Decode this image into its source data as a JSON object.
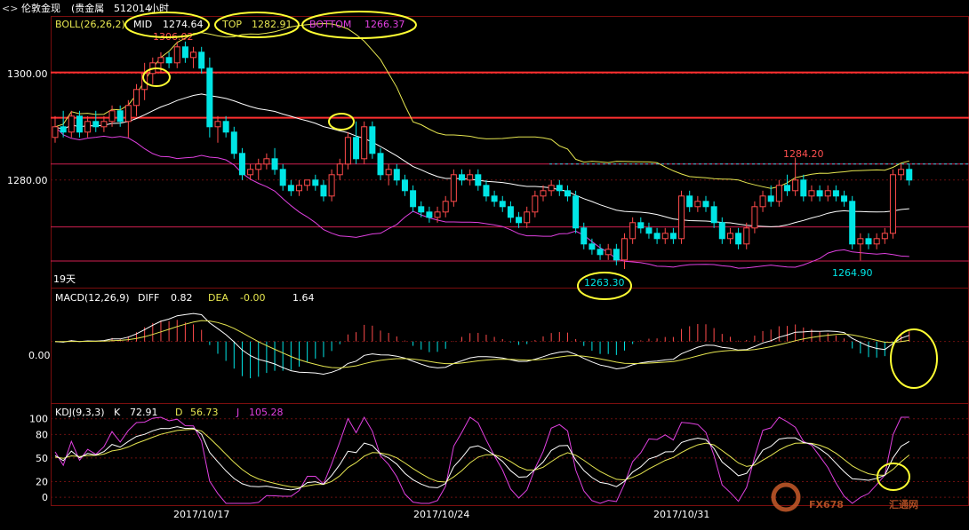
{
  "window": {
    "title": "伦敦金现",
    "subtitle": "(贵金属",
    "code": "512014",
    "period": "小时"
  },
  "boll": {
    "label": "BOLL(26,26,2)",
    "mid_label": "MID",
    "mid_value": "1274.64",
    "top_label": "TOP",
    "top_value": "1282.91",
    "bottom_label": "BOTTOM",
    "bottom_value": "1266.37"
  },
  "macd": {
    "label": "MACD(12,26,9)",
    "diff_label": "DIFF",
    "diff_value": "0.82",
    "dea_label": "DEA",
    "dea_value": "-0.00",
    "macd_value": "1.64"
  },
  "kdj": {
    "label": "KDJ(9,3,3)",
    "k_label": "K",
    "k_value": "72.91",
    "d_label": "D",
    "d_value": "56.73",
    "j_label": "J",
    "j_value": "105.28"
  },
  "annotations": {
    "high_1": "1306.02",
    "high_2": "1284.20",
    "low_1": "1263.30",
    "low_2": "1264.90",
    "days": "19天"
  },
  "watermark": {
    "brand": "FX678",
    "cn": "汇通网"
  },
  "colors": {
    "up": "#ff4b4b",
    "down": "#00e5e5",
    "mid": "#ffffff",
    "top": "#e6e650",
    "bottom": "#e040e0",
    "circle": "#ffff33"
  },
  "chart_data": [
    {
      "type": "candlestick",
      "title": "",
      "y_ticks": [
        "1300.00",
        "1280.00"
      ],
      "x_ticks": [
        "2017/10/17",
        "2017/10/24",
        "2017/10/31"
      ],
      "ylim": [
        1259.8,
        1310.8
      ],
      "horizontal_levels": [
        1300.2,
        1291.7,
        1283.0,
        1271.2,
        1264.8
      ],
      "candles": [
        {
          "o": 1288,
          "h": 1292,
          "l": 1287,
          "c": 1290
        },
        {
          "o": 1290,
          "h": 1293,
          "l": 1288,
          "c": 1289
        },
        {
          "o": 1289,
          "h": 1293,
          "l": 1288,
          "c": 1292
        },
        {
          "o": 1292,
          "h": 1293,
          "l": 1288,
          "c": 1289
        },
        {
          "o": 1289,
          "h": 1292,
          "l": 1288,
          "c": 1291
        },
        {
          "o": 1291,
          "h": 1293,
          "l": 1289,
          "c": 1290
        },
        {
          "o": 1290,
          "h": 1292,
          "l": 1289,
          "c": 1291
        },
        {
          "o": 1291,
          "h": 1294,
          "l": 1290,
          "c": 1293
        },
        {
          "o": 1293,
          "h": 1294,
          "l": 1290,
          "c": 1291
        },
        {
          "o": 1291,
          "h": 1295,
          "l": 1288,
          "c": 1294
        },
        {
          "o": 1294,
          "h": 1298,
          "l": 1292,
          "c": 1297
        },
        {
          "o": 1297,
          "h": 1302,
          "l": 1295,
          "c": 1300
        },
        {
          "o": 1300,
          "h": 1303,
          "l": 1298,
          "c": 1302
        },
        {
          "o": 1302,
          "h": 1304,
          "l": 1300,
          "c": 1303
        },
        {
          "o": 1303,
          "h": 1304,
          "l": 1301,
          "c": 1302
        },
        {
          "o": 1302,
          "h": 1306,
          "l": 1301,
          "c": 1305
        },
        {
          "o": 1305,
          "h": 1306,
          "l": 1302,
          "c": 1303
        },
        {
          "o": 1303,
          "h": 1305,
          "l": 1301,
          "c": 1304
        },
        {
          "o": 1304,
          "h": 1305,
          "l": 1300,
          "c": 1301
        },
        {
          "o": 1301,
          "h": 1303,
          "l": 1288,
          "c": 1290
        },
        {
          "o": 1290,
          "h": 1292,
          "l": 1287,
          "c": 1291
        },
        {
          "o": 1291,
          "h": 1292,
          "l": 1288,
          "c": 1289
        },
        {
          "o": 1289,
          "h": 1290,
          "l": 1284,
          "c": 1285
        },
        {
          "o": 1285,
          "h": 1286,
          "l": 1280,
          "c": 1281
        },
        {
          "o": 1281,
          "h": 1283,
          "l": 1280,
          "c": 1282
        },
        {
          "o": 1282,
          "h": 1284,
          "l": 1280,
          "c": 1283
        },
        {
          "o": 1283,
          "h": 1285,
          "l": 1282,
          "c": 1284
        },
        {
          "o": 1284,
          "h": 1286,
          "l": 1281,
          "c": 1282
        },
        {
          "o": 1282,
          "h": 1283,
          "l": 1278,
          "c": 1279
        },
        {
          "o": 1279,
          "h": 1280,
          "l": 1277,
          "c": 1278
        },
        {
          "o": 1278,
          "h": 1280,
          "l": 1277,
          "c": 1279
        },
        {
          "o": 1279,
          "h": 1280,
          "l": 1278,
          "c": 1280
        },
        {
          "o": 1280,
          "h": 1281,
          "l": 1278,
          "c": 1279
        },
        {
          "o": 1279,
          "h": 1280,
          "l": 1276,
          "c": 1277
        },
        {
          "o": 1277,
          "h": 1282,
          "l": 1276,
          "c": 1281
        },
        {
          "o": 1281,
          "h": 1284,
          "l": 1280,
          "c": 1283
        },
        {
          "o": 1283,
          "h": 1289,
          "l": 1282,
          "c": 1288
        },
        {
          "o": 1288,
          "h": 1291,
          "l": 1283,
          "c": 1284
        },
        {
          "o": 1284,
          "h": 1291,
          "l": 1283,
          "c": 1290
        },
        {
          "o": 1290,
          "h": 1291,
          "l": 1284,
          "c": 1285
        },
        {
          "o": 1285,
          "h": 1286,
          "l": 1280,
          "c": 1281
        },
        {
          "o": 1281,
          "h": 1283,
          "l": 1279,
          "c": 1282
        },
        {
          "o": 1282,
          "h": 1283,
          "l": 1279,
          "c": 1280
        },
        {
          "o": 1280,
          "h": 1281,
          "l": 1277,
          "c": 1278
        },
        {
          "o": 1278,
          "h": 1279,
          "l": 1274,
          "c": 1275
        },
        {
          "o": 1275,
          "h": 1276,
          "l": 1273,
          "c": 1274
        },
        {
          "o": 1274,
          "h": 1275,
          "l": 1272,
          "c": 1273
        },
        {
          "o": 1273,
          "h": 1275,
          "l": 1272,
          "c": 1274
        },
        {
          "o": 1274,
          "h": 1277,
          "l": 1273,
          "c": 1276
        },
        {
          "o": 1276,
          "h": 1282,
          "l": 1275,
          "c": 1281
        },
        {
          "o": 1281,
          "h": 1282,
          "l": 1279,
          "c": 1280
        },
        {
          "o": 1280,
          "h": 1282,
          "l": 1279,
          "c": 1281
        },
        {
          "o": 1281,
          "h": 1282,
          "l": 1278,
          "c": 1279
        },
        {
          "o": 1279,
          "h": 1280,
          "l": 1276,
          "c": 1277
        },
        {
          "o": 1277,
          "h": 1278,
          "l": 1275,
          "c": 1276
        },
        {
          "o": 1276,
          "h": 1277,
          "l": 1274,
          "c": 1275
        },
        {
          "o": 1275,
          "h": 1276,
          "l": 1272,
          "c": 1273
        },
        {
          "o": 1273,
          "h": 1274,
          "l": 1271,
          "c": 1272
        },
        {
          "o": 1272,
          "h": 1275,
          "l": 1271,
          "c": 1274
        },
        {
          "o": 1274,
          "h": 1278,
          "l": 1273,
          "c": 1277
        },
        {
          "o": 1277,
          "h": 1279,
          "l": 1276,
          "c": 1278
        },
        {
          "o": 1278,
          "h": 1280,
          "l": 1277,
          "c": 1279
        },
        {
          "o": 1279,
          "h": 1280,
          "l": 1277,
          "c": 1278
        },
        {
          "o": 1278,
          "h": 1279,
          "l": 1276,
          "c": 1277
        },
        {
          "o": 1277,
          "h": 1278,
          "l": 1270,
          "c": 1271
        },
        {
          "o": 1271,
          "h": 1272,
          "l": 1267,
          "c": 1268
        },
        {
          "o": 1268,
          "h": 1269,
          "l": 1266,
          "c": 1267
        },
        {
          "o": 1267,
          "h": 1268,
          "l": 1265,
          "c": 1266
        },
        {
          "o": 1266,
          "h": 1268,
          "l": 1265,
          "c": 1267
        },
        {
          "o": 1267,
          "h": 1268,
          "l": 1264,
          "c": 1265
        },
        {
          "o": 1265,
          "h": 1270,
          "l": 1263.3,
          "c": 1269
        },
        {
          "o": 1269,
          "h": 1273,
          "l": 1268,
          "c": 1272
        },
        {
          "o": 1272,
          "h": 1273,
          "l": 1270,
          "c": 1271
        },
        {
          "o": 1271,
          "h": 1272,
          "l": 1269,
          "c": 1270
        },
        {
          "o": 1270,
          "h": 1271,
          "l": 1268,
          "c": 1269
        },
        {
          "o": 1269,
          "h": 1271,
          "l": 1268,
          "c": 1270
        },
        {
          "o": 1270,
          "h": 1271,
          "l": 1268,
          "c": 1269
        },
        {
          "o": 1269,
          "h": 1278,
          "l": 1268,
          "c": 1277
        },
        {
          "o": 1277,
          "h": 1278,
          "l": 1274,
          "c": 1275
        },
        {
          "o": 1275,
          "h": 1277,
          "l": 1274,
          "c": 1276
        },
        {
          "o": 1276,
          "h": 1277,
          "l": 1274,
          "c": 1275
        },
        {
          "o": 1275,
          "h": 1276,
          "l": 1271,
          "c": 1272
        },
        {
          "o": 1272,
          "h": 1273,
          "l": 1268,
          "c": 1269
        },
        {
          "o": 1269,
          "h": 1271,
          "l": 1268,
          "c": 1270
        },
        {
          "o": 1270,
          "h": 1271,
          "l": 1267,
          "c": 1268
        },
        {
          "o": 1268,
          "h": 1272,
          "l": 1267,
          "c": 1271
        },
        {
          "o": 1271,
          "h": 1276,
          "l": 1270,
          "c": 1275
        },
        {
          "o": 1275,
          "h": 1278,
          "l": 1274,
          "c": 1277
        },
        {
          "o": 1277,
          "h": 1279,
          "l": 1275,
          "c": 1276
        },
        {
          "o": 1276,
          "h": 1280,
          "l": 1275,
          "c": 1279
        },
        {
          "o": 1279,
          "h": 1281,
          "l": 1277,
          "c": 1278
        },
        {
          "o": 1278,
          "h": 1284.2,
          "l": 1277,
          "c": 1280
        },
        {
          "o": 1280,
          "h": 1281,
          "l": 1276,
          "c": 1277
        },
        {
          "o": 1277,
          "h": 1279,
          "l": 1276,
          "c": 1278
        },
        {
          "o": 1278,
          "h": 1279,
          "l": 1276,
          "c": 1277
        },
        {
          "o": 1277,
          "h": 1279,
          "l": 1276,
          "c": 1278
        },
        {
          "o": 1278,
          "h": 1279,
          "l": 1276,
          "c": 1277
        },
        {
          "o": 1277,
          "h": 1278,
          "l": 1275,
          "c": 1276
        },
        {
          "o": 1276,
          "h": 1277,
          "l": 1267,
          "c": 1268
        },
        {
          "o": 1268,
          "h": 1270,
          "l": 1264.9,
          "c": 1269
        },
        {
          "o": 1269,
          "h": 1270,
          "l": 1267,
          "c": 1268
        },
        {
          "o": 1268,
          "h": 1270,
          "l": 1267,
          "c": 1269
        },
        {
          "o": 1269,
          "h": 1271,
          "l": 1268,
          "c": 1270
        },
        {
          "o": 1270,
          "h": 1282,
          "l": 1269,
          "c": 1281
        },
        {
          "o": 1281,
          "h": 1283,
          "l": 1280,
          "c": 1282
        },
        {
          "o": 1282,
          "h": 1283,
          "l": 1279,
          "c": 1280
        }
      ]
    },
    {
      "type": "bar+line",
      "title": "",
      "y_ticks": [
        "0.00"
      ],
      "ylim": [
        -8,
        7
      ]
    },
    {
      "type": "line",
      "title": "",
      "y_ticks": [
        "100",
        "80",
        "50",
        "20",
        "0"
      ],
      "ylim": [
        -10,
        120
      ]
    }
  ]
}
